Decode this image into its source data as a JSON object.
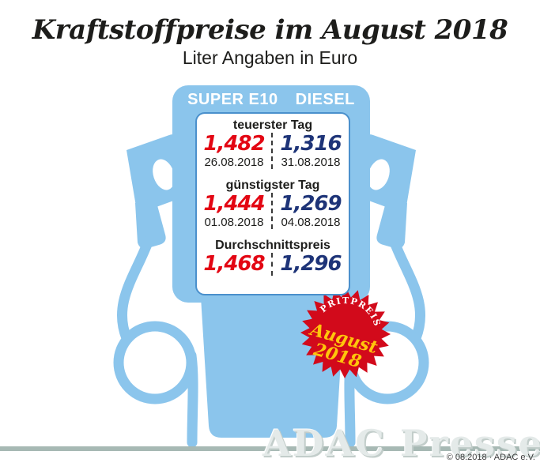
{
  "header": {
    "title": "Kraftstoffpreise im August 2018",
    "subtitle": "Liter Angaben in Euro"
  },
  "pump": {
    "fuels": [
      "SUPER E10",
      "DIESEL"
    ]
  },
  "panel": {
    "sections": [
      {
        "label": "teuerster Tag",
        "super_e10": "1,482",
        "super_e10_date": "26.08.2018",
        "diesel": "1,316",
        "diesel_date": "31.08.2018"
      },
      {
        "label": "günstigster Tag",
        "super_e10": "1,444",
        "super_e10_date": "01.08.2018",
        "diesel": "1,269",
        "diesel_date": "04.08.2018"
      },
      {
        "label": "Durchschnittspreis",
        "super_e10": "1,468",
        "diesel": "1,296"
      }
    ]
  },
  "badge": {
    "top_label": "SPRITPREISE",
    "line1": "August",
    "line2": "2018"
  },
  "footer": {
    "watermark": "ADAC Presse",
    "copyright": "© 08.2018 · ADAC e.V."
  },
  "colors": {
    "pump_blue": "#8bc5ec",
    "super_e10_red": "#e30613",
    "diesel_navy": "#1e3478",
    "panel_border": "#4a90cc",
    "badge_red": "#d20a1b",
    "badge_yellow": "#ffc60b",
    "badge_top_text": "#ffffff",
    "ground_line": "#a7b9b4"
  },
  "chart_data": {
    "type": "table",
    "title": "Kraftstoffpreise im August 2018",
    "subtitle": "Liter Angaben in Euro",
    "unit": "Euro pro Liter",
    "columns": [
      "SUPER E10",
      "DIESEL"
    ],
    "rows": [
      {
        "label": "teuerster Tag",
        "super_e10": 1.482,
        "super_e10_date": "26.08.2018",
        "diesel": 1.316,
        "diesel_date": "31.08.2018"
      },
      {
        "label": "günstigster Tag",
        "super_e10": 1.444,
        "super_e10_date": "01.08.2018",
        "diesel": 1.269,
        "diesel_date": "04.08.2018"
      },
      {
        "label": "Durchschnittspreis",
        "super_e10": 1.468,
        "diesel": 1.296
      }
    ]
  }
}
